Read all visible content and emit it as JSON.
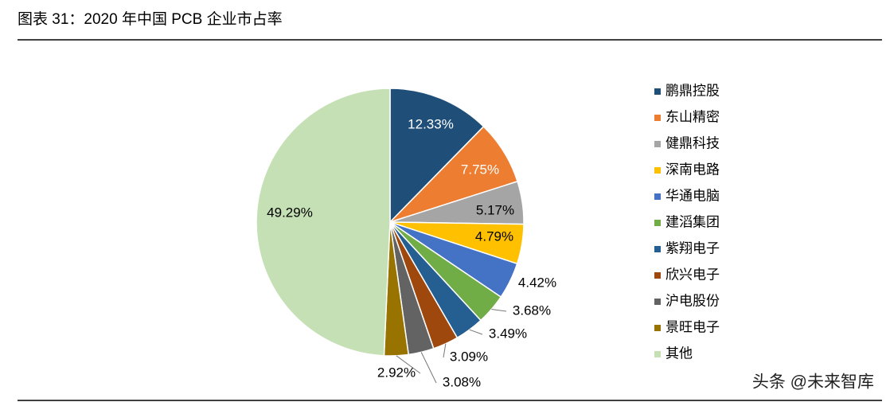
{
  "chart_data": {
    "type": "pie",
    "title": "图表 31：2020 年中国 PCB 企业市占率",
    "categories": [
      "鹏鼎控股",
      "东山精密",
      "健鼎科技",
      "深南电路",
      "华通电脑",
      "建滔集团",
      "紫翔电子",
      "欣兴电子",
      "沪电股份",
      "景旺电子",
      "其他"
    ],
    "values": [
      12.33,
      7.75,
      5.17,
      4.79,
      4.42,
      3.68,
      3.49,
      3.09,
      3.08,
      2.92,
      49.29
    ],
    "value_labels": [
      "12.33%",
      "7.75%",
      "5.17%",
      "4.79%",
      "4.42%",
      "3.68%",
      "3.49%",
      "3.09%",
      "3.08%",
      "2.92%",
      "49.29%"
    ],
    "colors": [
      "#1f4e79",
      "#ed7d31",
      "#a5a5a5",
      "#ffc000",
      "#4472c4",
      "#70ad47",
      "#255e91",
      "#9e480e",
      "#636363",
      "#997300",
      "#c5e0b4"
    ],
    "legend": "right",
    "watermark": "头条 @未来智库"
  }
}
